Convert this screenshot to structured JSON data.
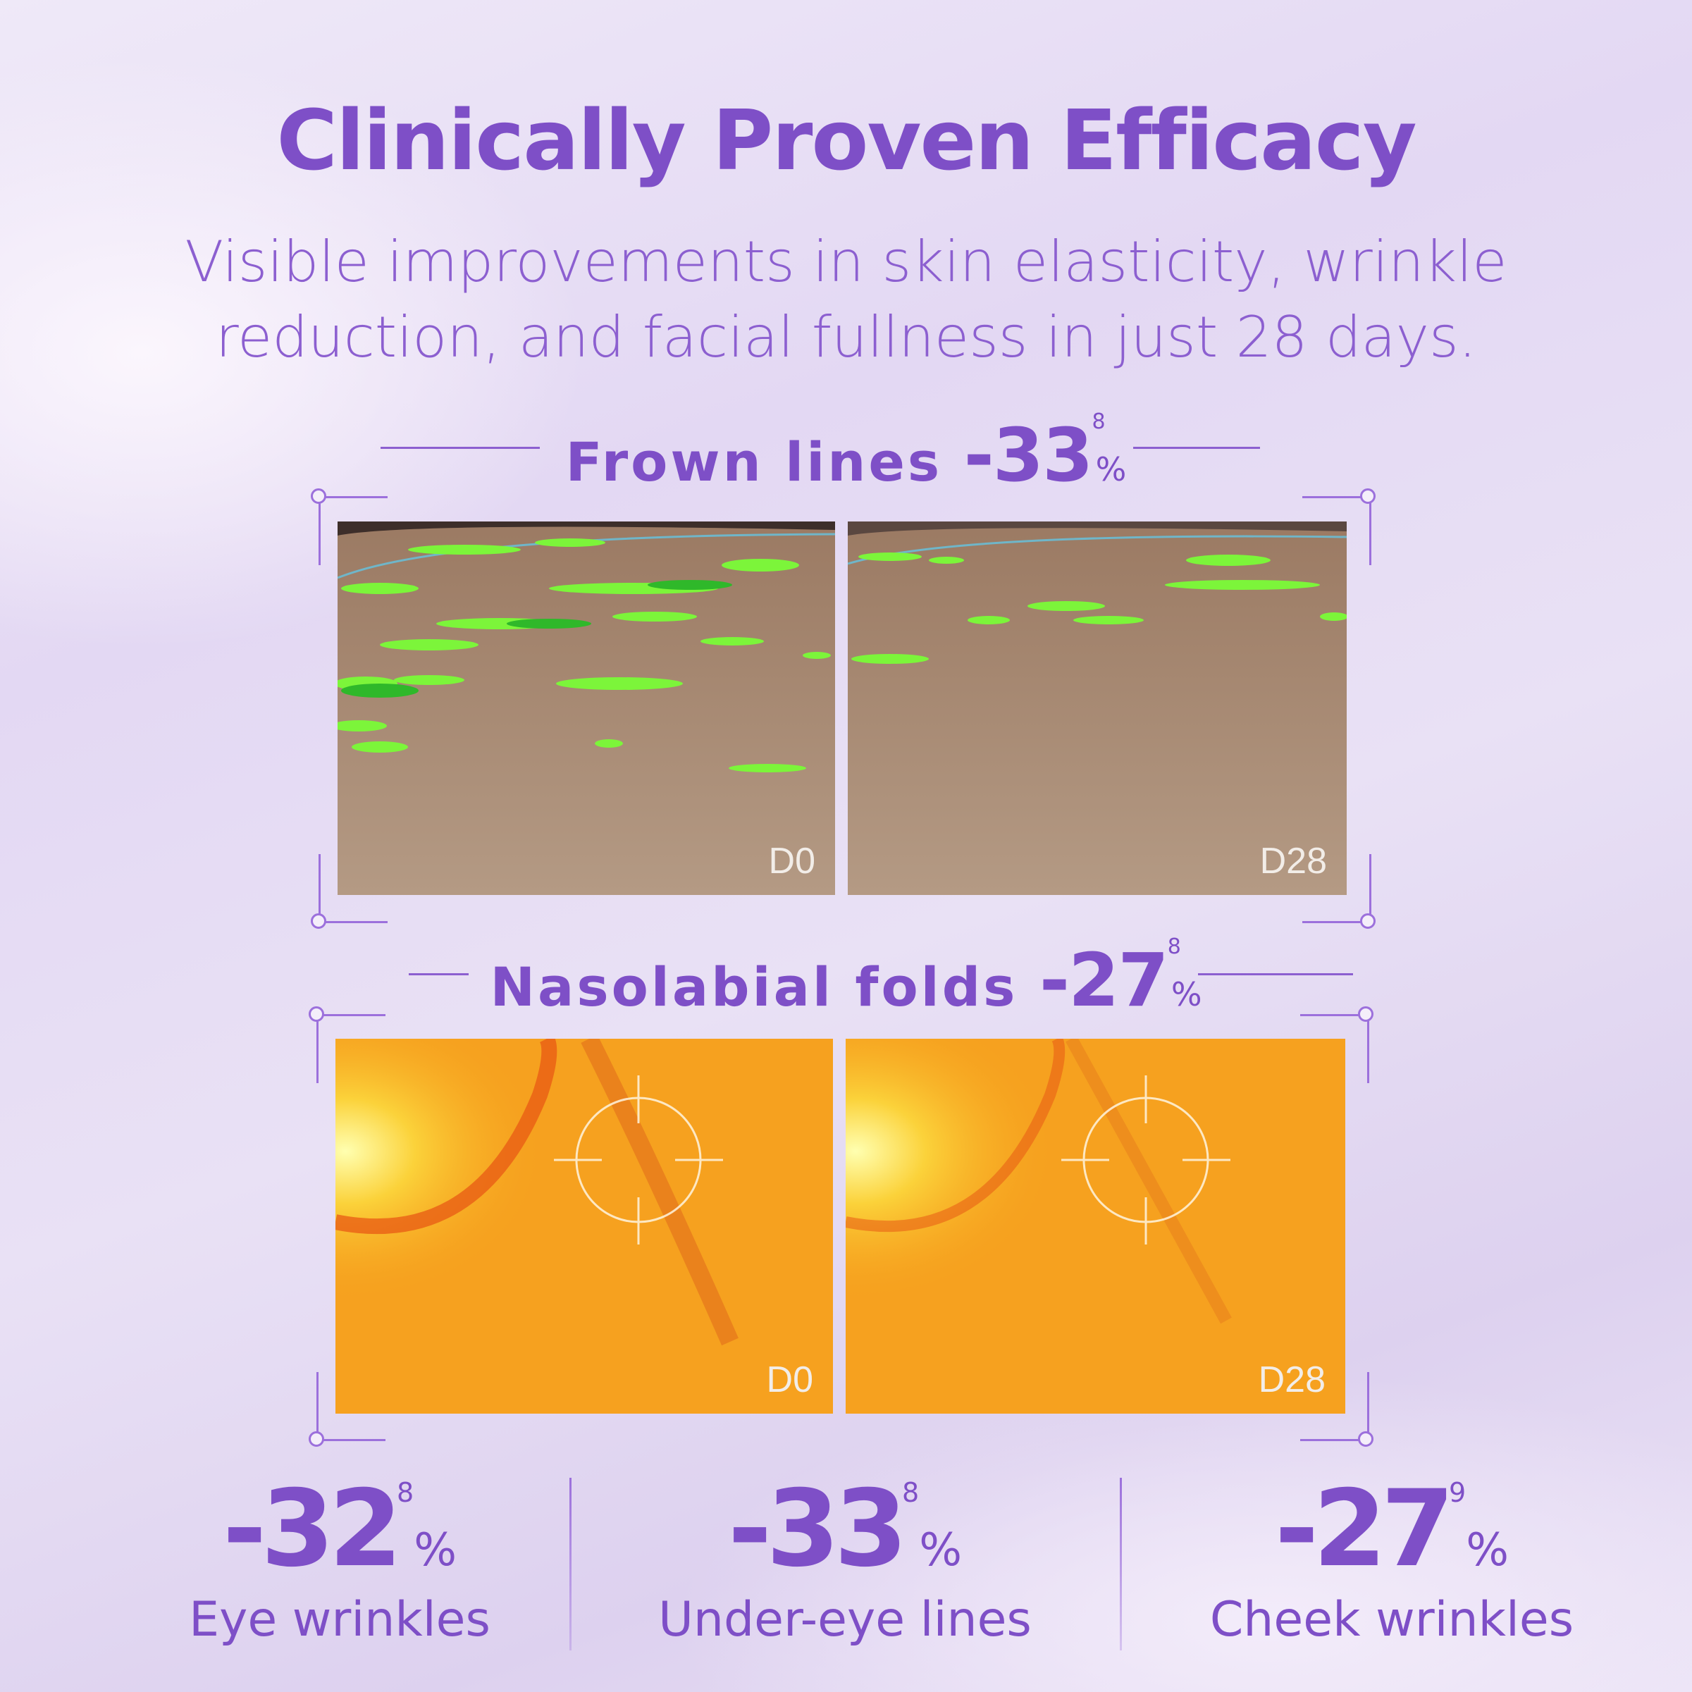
{
  "title": "Clinically Proven Efficacy",
  "subtitle": [
    "Visible improvements in skin elasticity, wrinkle",
    "reduction, and facial fullness in just 28 days."
  ],
  "sections": [
    {
      "label": "Frown lines",
      "sign": "-",
      "value": "33",
      "footnote": "8",
      "unit": "%",
      "before_label": "D0",
      "after_label": "D28"
    },
    {
      "label": "Nasolabial folds",
      "sign": "-",
      "value": "27",
      "footnote": "8",
      "unit": "%",
      "before_label": "D0",
      "after_label": "D28"
    }
  ],
  "stats": [
    {
      "sign": "-",
      "value": "32",
      "footnote": "8",
      "unit": "%",
      "label": "Eye wrinkles"
    },
    {
      "sign": "-",
      "value": "33",
      "footnote": "8",
      "unit": "%",
      "label": "Under-eye lines"
    },
    {
      "sign": "-",
      "value": "27",
      "footnote": "9",
      "unit": "%",
      "label": "Cheek wrinkles"
    }
  ],
  "colors": {
    "accent": "#7e4fc7",
    "wrinkle_highlight": "#7cf53a",
    "heatmap": "#f7a21d"
  }
}
